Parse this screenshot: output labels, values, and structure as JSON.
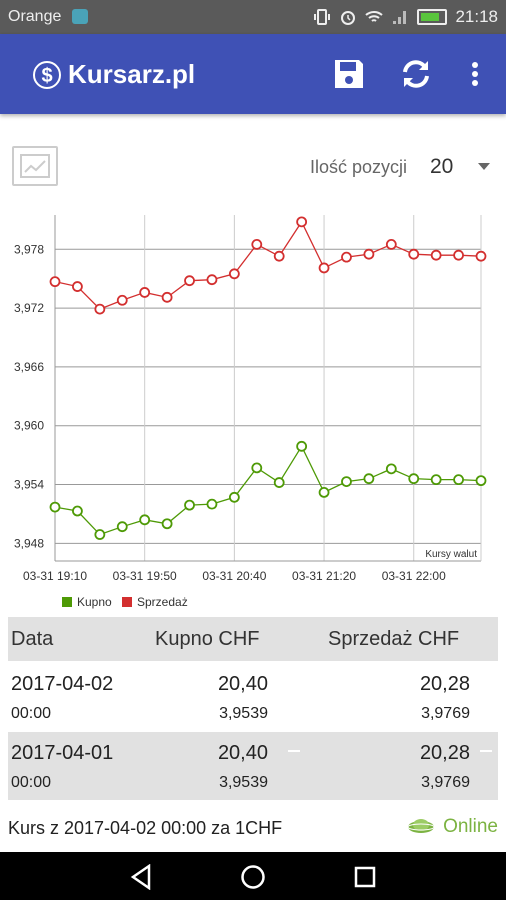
{
  "status_bar": {
    "carrier": "Orange",
    "time": "21:18"
  },
  "app_bar": {
    "title": "Kursarz.pl",
    "actions": [
      "save-icon",
      "refresh-icon",
      "more-vert-icon"
    ]
  },
  "controls": {
    "qty_label": "Ilość pozycji",
    "qty_value": "20"
  },
  "colors": {
    "primary": "#3f51b5",
    "kupno": "#4e9a06",
    "sprzedaz": "#d32f2f",
    "online": "#7cb342"
  },
  "chart_data": {
    "type": "line",
    "y_ticks": [
      "3,948",
      "3,954",
      "3,960",
      "3,966",
      "3,972",
      "3,978"
    ],
    "ylim": [
      3.9462,
      3.9815
    ],
    "x_tick_labels": [
      "03-31 19:10",
      "03-31 19:50",
      "03-31 20:40",
      "03-31 21:20",
      "03-31 22:00"
    ],
    "x_tick_index": [
      0,
      4,
      8,
      12,
      16
    ],
    "annotation": "Kursy walut",
    "grid": true,
    "legend_position": "bottom-left",
    "series": [
      {
        "name": "Kupno",
        "color": "#4e9a06",
        "values": [
          3.9517,
          3.9513,
          3.9489,
          3.9497,
          3.9504,
          3.95,
          3.9519,
          3.952,
          3.9527,
          3.9557,
          3.9542,
          3.9579,
          3.9532,
          3.9543,
          3.9546,
          3.9556,
          3.9546,
          3.9545,
          3.9545,
          3.9544
        ]
      },
      {
        "name": "Sprzedaż",
        "color": "#d32f2f",
        "values": [
          3.9747,
          3.9742,
          3.9719,
          3.9728,
          3.9736,
          3.9731,
          3.9748,
          3.9749,
          3.9755,
          3.9785,
          3.9773,
          3.9808,
          3.9761,
          3.9772,
          3.9775,
          3.9785,
          3.9775,
          3.9774,
          3.9774,
          3.9773
        ]
      }
    ]
  },
  "table": {
    "headers": {
      "date": "Data",
      "kupno": "Kupno CHF",
      "sprzedaz": "Sprzedaż CHF"
    },
    "rows": [
      {
        "date": "2017-04-02",
        "time": "00:00",
        "kupno": "20,40",
        "kupno_rate": "3,9539",
        "sprzedaz": "20,28",
        "sprzedaz_rate": "3,9769"
      },
      {
        "date": "2017-04-01",
        "time": "00:00",
        "kupno": "20,40",
        "kupno_rate": "3,9539",
        "sprzedaz": "20,28",
        "sprzedaz_rate": "3,9769"
      }
    ]
  },
  "footer": {
    "note": "Kurs z 2017-04-02 00:00 za 1CHF",
    "status": "Online"
  }
}
